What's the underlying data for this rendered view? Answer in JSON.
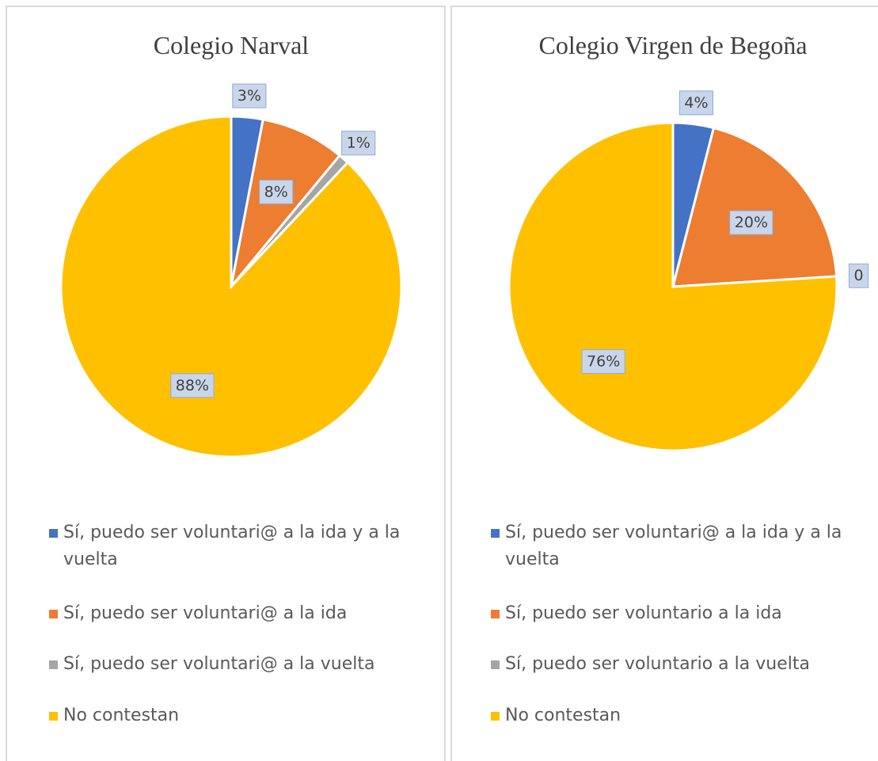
{
  "chart_data": [
    {
      "type": "pie",
      "title": "Colegio Narval",
      "categories": [
        "Sí, puedo ser voluntari@ a la ida y a la vuelta",
        "Sí, puedo ser voluntari@ a la ida",
        "Sí, puedo ser voluntari@ a la vuelta",
        "No contestan"
      ],
      "values": [
        3,
        8,
        1,
        88
      ],
      "value_labels": [
        "3%",
        "8%",
        "1%",
        "88%"
      ],
      "colors": [
        "#4472c4",
        "#ed7d31",
        "#a5a5a5",
        "#ffc000"
      ]
    },
    {
      "type": "pie",
      "title": "Colegio Virgen de Begoña",
      "categories": [
        "Sí, puedo ser voluntari@ a la ida y a la vuelta",
        "Sí, puedo ser voluntario a la ida",
        "Sí, puedo ser voluntario a la vuelta",
        "No contestan"
      ],
      "values": [
        4,
        20,
        0,
        76
      ],
      "value_labels": [
        "4%",
        "20%",
        "0",
        "76%"
      ],
      "colors": [
        "#4472c4",
        "#ed7d31",
        "#a5a5a5",
        "#ffc000"
      ]
    }
  ]
}
